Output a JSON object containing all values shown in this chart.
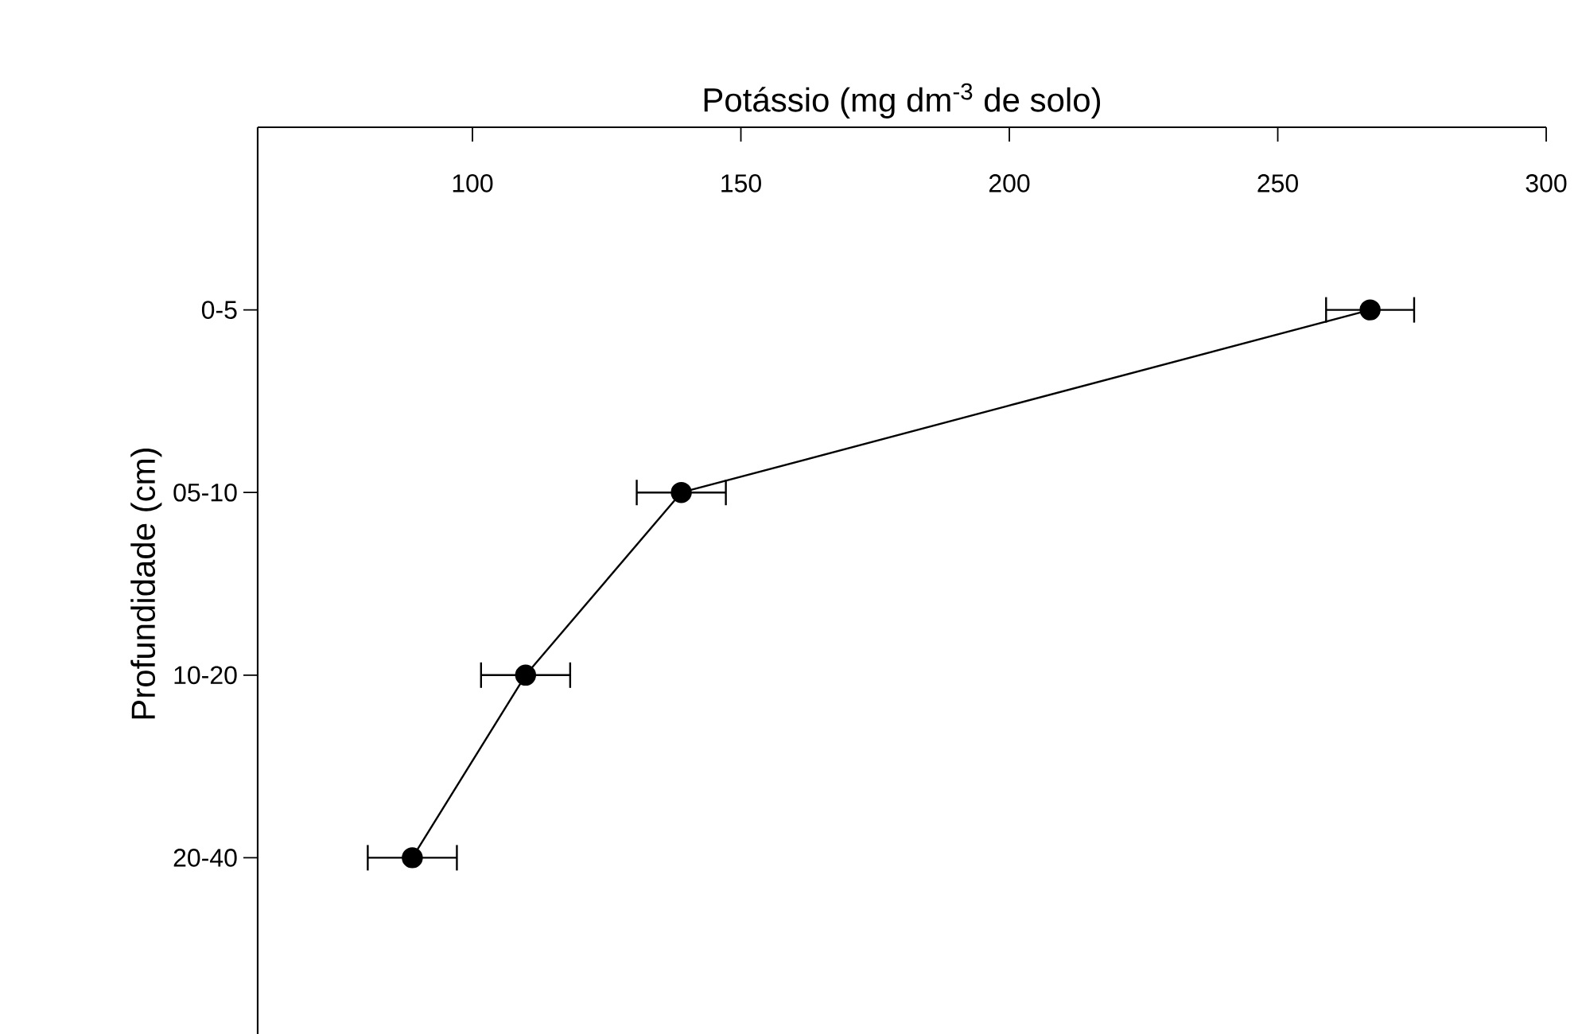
{
  "chart_data": {
    "type": "line",
    "orientation": "horizontal",
    "xlabel": "Potássio (mg dm$^{-3}$ de solo)",
    "ylabel": "Profundidade (cm)",
    "categories": [
      "0-5",
      "05-10",
      "10-20",
      "20-40"
    ],
    "values": [
      267.2,
      138.9,
      109.9,
      88.8
    ],
    "errors": [
      8.2,
      8.3,
      8.3,
      8.3
    ],
    "color": "#000000",
    "marker": "circle",
    "line_style": "solid",
    "xlim": [
      60,
      300
    ],
    "xticks": [
      100,
      150,
      200,
      250,
      300
    ]
  }
}
